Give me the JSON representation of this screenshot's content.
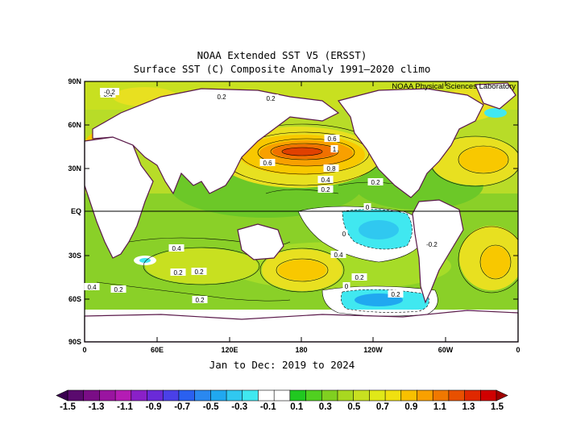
{
  "title": "NOAA Extended SST V5 (ERSST)",
  "subtitle": "Surface SST (C) Composite Anomaly 1991–2020 climo",
  "credit": "NOAA Physical Sciences Laboratory",
  "period": "Jan to Dec: 2019 to 2024",
  "lat_ticks": [
    "90N",
    "60N",
    "30N",
    "EQ",
    "30S",
    "60S",
    "90S"
  ],
  "lon_ticks": [
    "0",
    "60E",
    "120E",
    "180",
    "120W",
    "60W",
    "0"
  ],
  "contour_labels": [
    "0.4",
    "0.2",
    "0.2",
    "0.6",
    "0.6",
    "1",
    "0.8",
    "0.4",
    "0.2",
    "0.2",
    "0",
    "0",
    "0.4",
    "0.2",
    "0.4",
    "0.2",
    "0.4",
    "0.2",
    "0.2",
    "0.2",
    "-0.2",
    "-0.2",
    "0.2",
    "0"
  ],
  "colorbar": {
    "labels": [
      "-1.5",
      "-1.3",
      "-1.1",
      "-0.9",
      "-0.7",
      "-0.5",
      "-0.3",
      "-0.1",
      "0.1",
      "0.3",
      "0.5",
      "0.7",
      "0.9",
      "1.1",
      "1.3",
      "1.5"
    ],
    "colors": [
      "#5a0a6e",
      "#7a0d86",
      "#9a14a0",
      "#b41cb4",
      "#8a20c8",
      "#6a2ad8",
      "#4a40e8",
      "#2a60f0",
      "#2a88f0",
      "#20a8f0",
      "#30c8f0",
      "#40e8f0",
      "#ffffff",
      "#ffffff",
      "#20c820",
      "#50d020",
      "#80d020",
      "#a8d820",
      "#c8e020",
      "#e0e818",
      "#f0e010",
      "#f8c000",
      "#f8a000",
      "#f07800",
      "#e85000",
      "#e02800",
      "#d00000"
    ]
  },
  "colors": {
    "land_outline": "#5a1a4a",
    "frame": "#000000"
  }
}
